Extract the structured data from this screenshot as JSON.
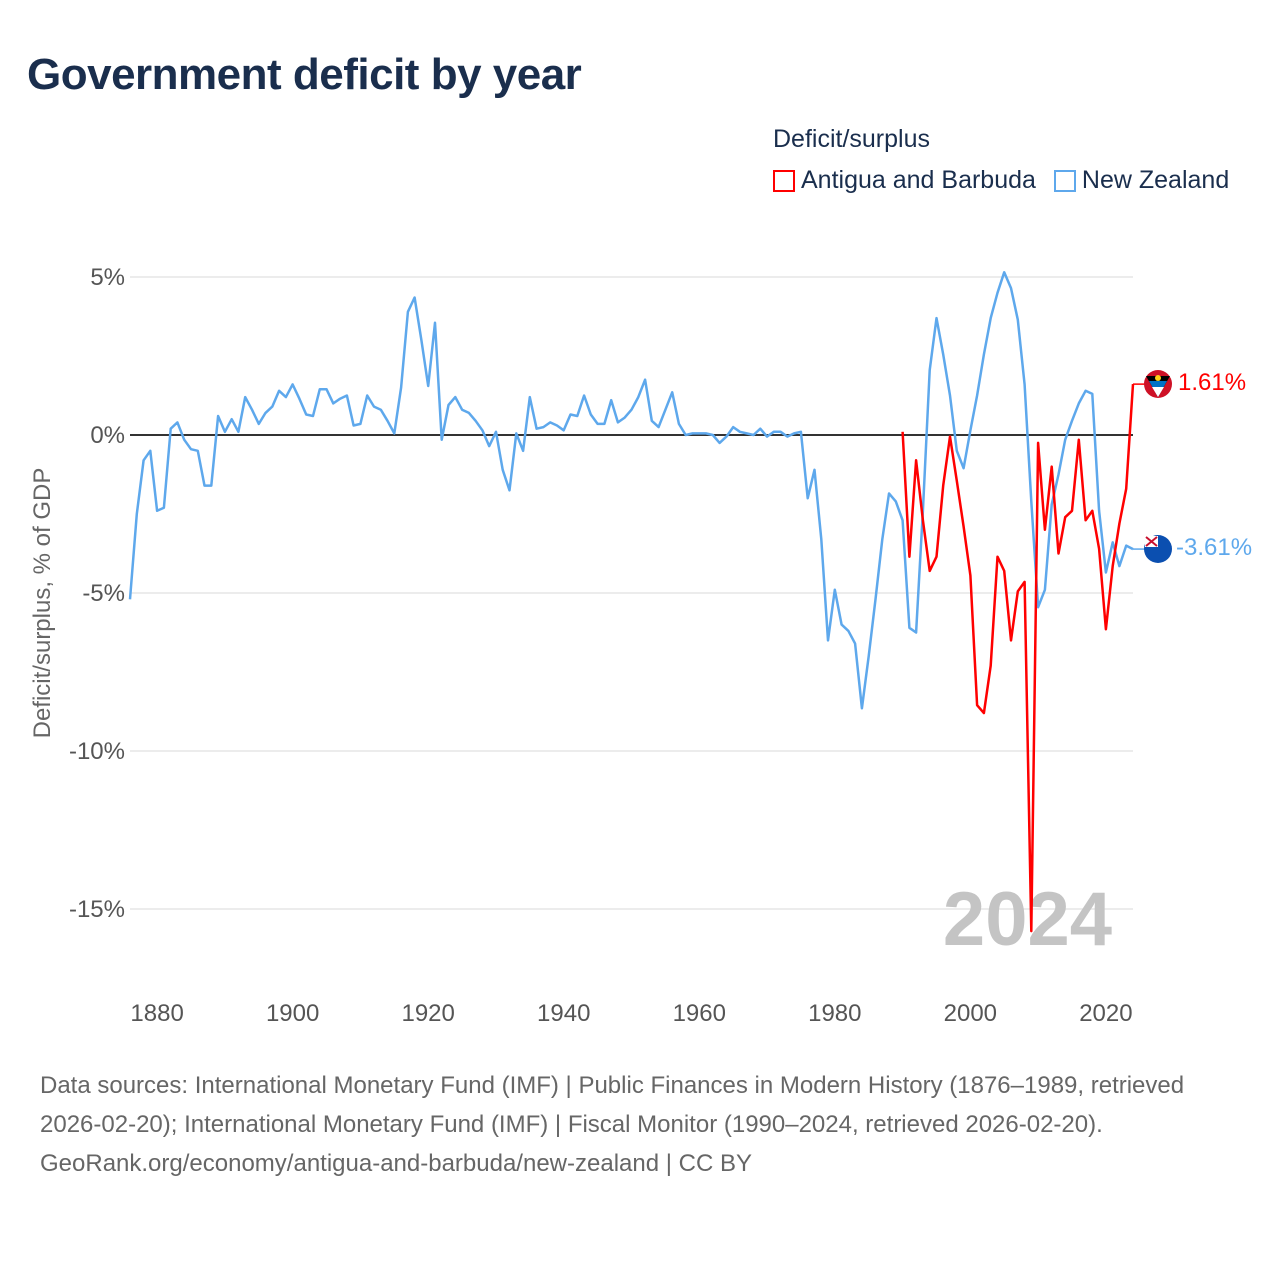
{
  "title": "Government deficit by year",
  "legend": {
    "title": "Deficit/surplus",
    "items": [
      {
        "label": "Antigua and Barbuda",
        "color": "#ff0000"
      },
      {
        "label": "New Zealand",
        "color": "#5ea8ec"
      }
    ]
  },
  "watermark_year": "2024",
  "end_labels": {
    "antigua": "1.61%",
    "nz": "-3.61%"
  },
  "footer": {
    "sources": "Data sources: International Monetary Fund (IMF) | Public Finances in Modern History (1876–1989, retrieved 2026-02-20); International Monetary Fund (IMF) | Fiscal Monitor (1990–2024, retrieved 2026-02-20).",
    "link": "GeoRank.org/economy/antigua-and-barbuda/new-zealand | CC BY"
  },
  "chart_data": {
    "type": "line",
    "title": "Government deficit by year",
    "xlabel": "",
    "ylabel": "Deficit/surplus, % of GDP",
    "xlim": [
      1876,
      2024
    ],
    "ylim": [
      -17,
      6
    ],
    "x_ticks": [
      1880,
      1900,
      1920,
      1940,
      1960,
      1980,
      2000,
      2020
    ],
    "y_ticks": [
      {
        "v": 5,
        "label": "5%"
      },
      {
        "v": 0,
        "label": "0%"
      },
      {
        "v": -5,
        "label": "-5%"
      },
      {
        "v": -10,
        "label": "-10%"
      },
      {
        "v": -15,
        "label": "-15%"
      }
    ],
    "grid": true,
    "legend_position": "top-right",
    "series": [
      {
        "name": "New Zealand",
        "color": "#5ea8ec",
        "start": 1876,
        "values": [
          -5.2,
          -2.5,
          -0.8,
          -0.5,
          -2.4,
          -2.3,
          0.2,
          0.4,
          -0.15,
          -0.45,
          -0.5,
          -1.6,
          -1.6,
          0.6,
          0.1,
          0.5,
          0.1,
          1.2,
          0.8,
          0.35,
          0.7,
          0.9,
          1.4,
          1.2,
          1.6,
          1.15,
          0.65,
          0.6,
          1.45,
          1.45,
          1.0,
          1.15,
          1.25,
          0.3,
          0.35,
          1.25,
          0.9,
          0.8,
          0.45,
          0.05,
          1.5,
          3.9,
          4.35,
          3.0,
          1.55,
          3.55,
          -0.15,
          0.95,
          1.2,
          0.8,
          0.7,
          0.45,
          0.15,
          -0.35,
          0.1,
          -1.1,
          -1.75,
          0.05,
          -0.5,
          1.2,
          0.2,
          0.25,
          0.4,
          0.3,
          0.15,
          0.65,
          0.6,
          1.25,
          0.65,
          0.35,
          0.35,
          1.1,
          0.4,
          0.55,
          0.8,
          1.2,
          1.75,
          0.45,
          0.25,
          0.8,
          1.35,
          0.35,
          0.0,
          0.05,
          0.05,
          0.05,
          0.0,
          -0.25,
          -0.05,
          0.25,
          0.1,
          0.05,
          0.0,
          0.2,
          -0.05,
          0.1,
          0.1,
          -0.05,
          0.05,
          0.1,
          -2.0,
          -1.1,
          -3.3,
          -6.5,
          -4.9,
          -6.0,
          -6.2,
          -6.6,
          -8.65,
          -7.0,
          -5.2,
          -3.3,
          -1.85,
          -2.1,
          -2.7,
          -6.1,
          -6.25,
          -2.4,
          2.05,
          3.7,
          2.55,
          1.25,
          -0.5,
          -1.05,
          0.15,
          1.25,
          2.55,
          3.7,
          4.5,
          5.15,
          4.65,
          3.65,
          1.6,
          -2.1,
          -5.45,
          -4.9,
          -2.2,
          -1.25,
          -0.15,
          0.45,
          1.0,
          1.4,
          1.3,
          -2.4,
          -4.35,
          -3.4,
          -4.15,
          -3.5,
          -3.61
        ]
      },
      {
        "name": "Antigua and Barbuda",
        "color": "#ff0000",
        "start": 1990,
        "values": [
          0.1,
          -3.85,
          -0.8,
          -2.7,
          -4.3,
          -3.85,
          -1.6,
          -0.05,
          -1.45,
          -2.9,
          -4.45,
          -8.55,
          -8.8,
          -7.3,
          -3.85,
          -4.3,
          -6.5,
          -4.95,
          -4.65,
          -15.7,
          -0.25,
          -3.0,
          -1.0,
          -3.75,
          -2.6,
          -2.4,
          -0.15,
          -2.7,
          -2.4,
          -3.6,
          -6.15,
          -4.15,
          -2.8,
          -1.7,
          1.61
        ]
      }
    ]
  }
}
